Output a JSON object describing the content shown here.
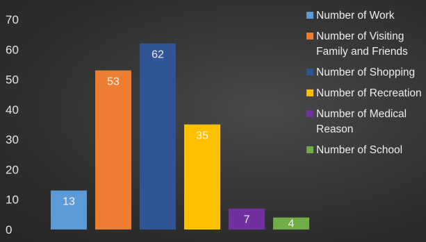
{
  "chart_data": {
    "type": "bar",
    "categories": [
      "Number of Work",
      "Number of Visiting Family and Friends",
      "Number of Shopping",
      "Number of Recreation",
      "Number of Medical Reason",
      "Number of School"
    ],
    "values": [
      13,
      53,
      62,
      35,
      7,
      4
    ],
    "colors": [
      "#5b9bd5",
      "#ed7d31",
      "#2f5597",
      "#ffc000",
      "#7030a0",
      "#70ad47"
    ],
    "ylim": [
      0,
      70
    ],
    "yticks": [
      0,
      10,
      20,
      30,
      40,
      50,
      60,
      70
    ],
    "grid": false,
    "legend_position": "right",
    "data_labels": true,
    "title": "",
    "xlabel": "",
    "ylabel": ""
  }
}
